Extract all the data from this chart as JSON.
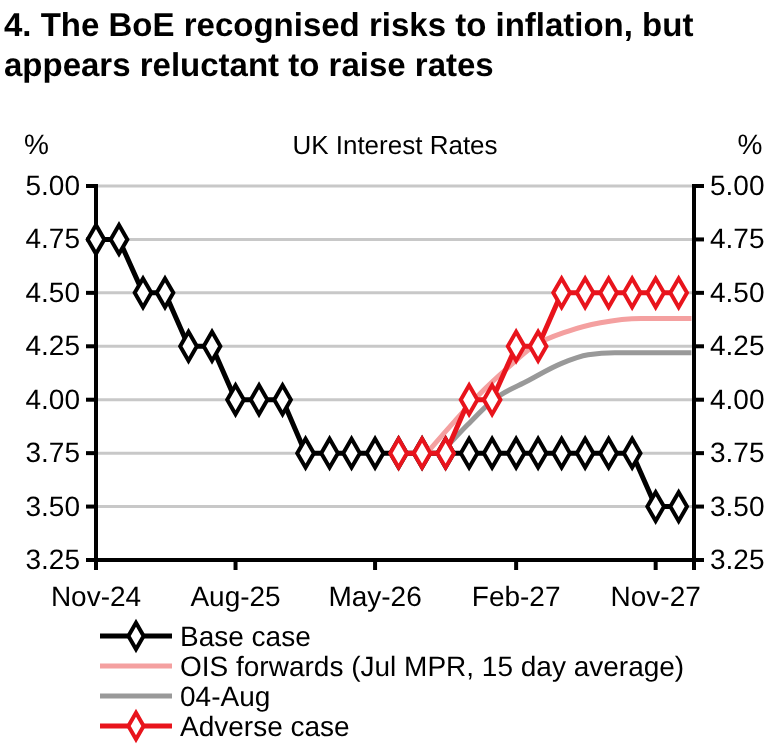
{
  "chart_data": {
    "type": "line",
    "title": "4. The BoE recognised risks to inflation, but appears reluctant to raise rates",
    "subtitle": "UK Interest Rates",
    "ylabel": "%",
    "y2label": "%",
    "xlim": [
      "2024-11-01",
      "2028-01-15"
    ],
    "xticks": [
      {
        "value": "2024-11-01",
        "label": "Nov-24"
      },
      {
        "value": "2025-08-01",
        "label": "Aug-25"
      },
      {
        "value": "2026-05-01",
        "label": "May-26"
      },
      {
        "value": "2027-02-01",
        "label": "Feb-27"
      },
      {
        "value": "2027-11-01",
        "label": "Nov-27"
      }
    ],
    "ylim": [
      3.25,
      5
    ],
    "yticks": [
      {
        "value": 3.25,
        "label": "3.25"
      },
      {
        "value": 3.5,
        "label": "3.50"
      },
      {
        "value": 3.75,
        "label": "3.75"
      },
      {
        "value": 4,
        "label": "4.00"
      },
      {
        "value": 4.25,
        "label": "4.25"
      },
      {
        "value": 4.5,
        "label": "4.50"
      },
      {
        "value": 4.75,
        "label": "4.75"
      },
      {
        "value": 5,
        "label": "5.00"
      }
    ],
    "y2lim": [
      3.25,
      5
    ],
    "y2ticks": [
      {
        "value": 3.25,
        "label": "3.25"
      },
      {
        "value": 3.5,
        "label": "3.50"
      },
      {
        "value": 3.75,
        "label": "3.75"
      },
      {
        "value": 4,
        "label": "4.00"
      },
      {
        "value": 4.25,
        "label": "4.25"
      },
      {
        "value": 4.5,
        "label": "4.50"
      },
      {
        "value": 4.75,
        "label": "4.75"
      },
      {
        "value": 5,
        "label": "5.00"
      }
    ],
    "grid": "y",
    "legend": "bottom",
    "series": [
      {
        "name": "Base case",
        "color": "#000000",
        "marker": "diamond",
        "x": [
          "2024-11-01",
          "2024-12-16",
          "2025-02-01",
          "2025-03-16",
          "2025-05-01",
          "2025-06-16",
          "2025-08-01",
          "2025-09-16",
          "2025-11-01",
          "2025-12-16",
          "2026-02-01",
          "2026-03-16",
          "2026-05-01",
          "2026-06-16",
          "2026-08-01",
          "2026-09-16",
          "2026-11-01",
          "2026-12-16",
          "2027-02-01",
          "2027-03-16",
          "2027-05-01",
          "2027-06-16",
          "2027-08-01",
          "2027-09-16",
          "2027-11-01",
          "2027-12-16"
        ],
        "values": [
          4.75,
          4.75,
          4.5,
          4.5,
          4.25,
          4.25,
          4.0,
          4.0,
          4.0,
          3.75,
          3.75,
          3.75,
          3.75,
          3.75,
          3.75,
          3.75,
          3.75,
          3.75,
          3.75,
          3.75,
          3.75,
          3.75,
          3.75,
          3.75,
          3.5,
          3.5
        ]
      },
      {
        "name": "OIS forwards (Jul MPR, 15 day average)",
        "color": "#f4a0a0",
        "marker": "none",
        "x": [
          "2026-08-10",
          "2026-10-04",
          "2026-11-19",
          "2027-01-16",
          "2027-03-07",
          "2027-05-13",
          "2027-07-16",
          "2027-10-04",
          "2028-01-10"
        ],
        "values": [
          3.75,
          3.9,
          4.02,
          4.15,
          4.25,
          4.32,
          4.36,
          4.38,
          4.38
        ]
      },
      {
        "name": "04-Aug",
        "color": "#999999",
        "marker": "none",
        "x": [
          "2026-09-07",
          "2026-10-28",
          "2026-12-19",
          "2027-02-25",
          "2027-05-01",
          "2027-06-22",
          "2027-08-13",
          "2028-01-10"
        ],
        "values": [
          3.75,
          3.88,
          4.0,
          4.09,
          4.17,
          4.21,
          4.22,
          4.22
        ]
      },
      {
        "name": "Adverse case",
        "color": "#e8141c",
        "marker": "diamond",
        "x": [
          "2026-06-16",
          "2026-08-01",
          "2026-09-16",
          "2026-11-01",
          "2026-12-16",
          "2027-02-01",
          "2027-03-16",
          "2027-05-01",
          "2027-06-16",
          "2027-08-01",
          "2027-09-16",
          "2027-11-01",
          "2027-12-16"
        ],
        "values": [
          3.75,
          3.75,
          3.75,
          4.0,
          4.0,
          4.25,
          4.25,
          4.5,
          4.5,
          4.5,
          4.5,
          4.5,
          4.5
        ]
      }
    ]
  }
}
